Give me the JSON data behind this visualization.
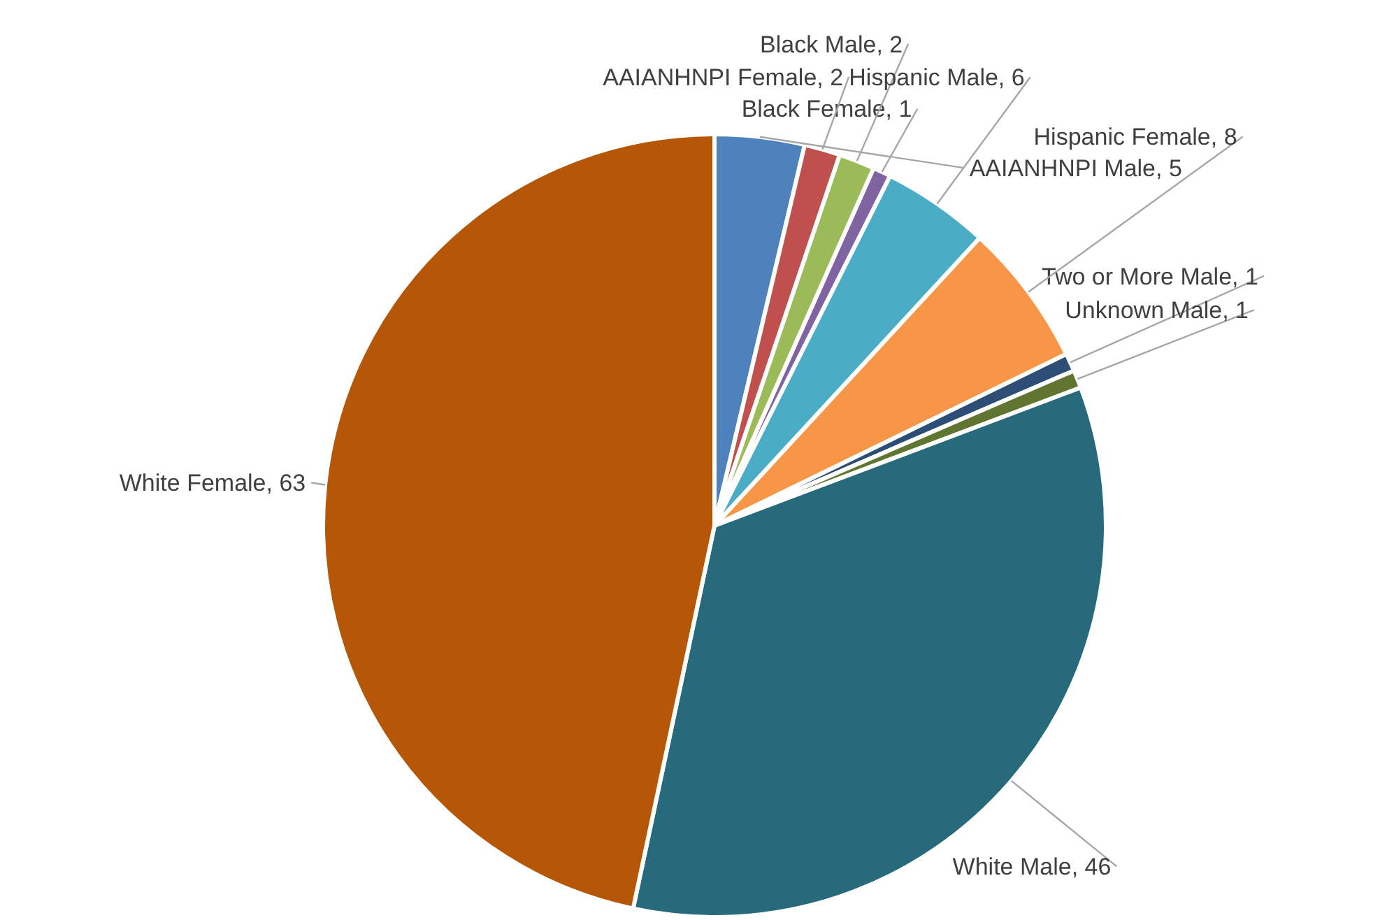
{
  "chart_data": {
    "type": "pie",
    "categories": [
      "AAIANHNPI Male",
      "AAIANHNPI Female",
      "Black Male",
      "Black Female",
      "Hispanic Male",
      "Hispanic Female",
      "Two or More Male",
      "Unknown Male",
      "White Male",
      "White Female"
    ],
    "values": [
      5,
      2,
      2,
      1,
      6,
      8,
      1,
      1,
      46,
      63
    ],
    "value_labels": [
      ", 5",
      ", 2",
      ", 2",
      ", 1",
      ", 6",
      ", 8",
      ", 1",
      ", 1",
      ", 46",
      ", 63"
    ],
    "colors": [
      "#4f81bd",
      "#c0504d",
      "#9bbb59",
      "#8064a2",
      "#4bacc6",
      "#f79646",
      "#2c4d75",
      "#5f7530",
      "#276a7c",
      "#b65708"
    ]
  }
}
